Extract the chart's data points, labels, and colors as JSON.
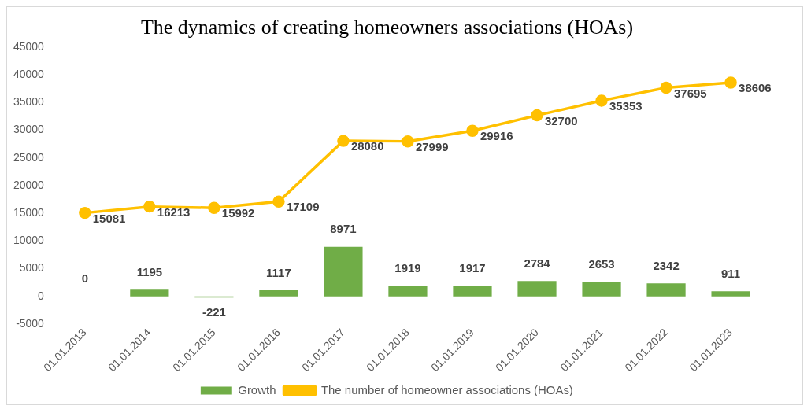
{
  "chart_data": {
    "type": "bar",
    "title": "The dynamics of creating homeowners associations (HOAs)",
    "categories": [
      "01.01.2013",
      "01.01.2014",
      "01.01.2015",
      "01.01.2016",
      "01.01.2017",
      "01.01.2018",
      "01.01.2019",
      "01.01.2020",
      "01.01.2021",
      "01.01.2022",
      "01.01.2023"
    ],
    "series": [
      {
        "name": "Growth",
        "color": "#70ad47",
        "values": [
          0,
          1195,
          -221,
          1117,
          8971,
          1919,
          1917,
          2784,
          2653,
          2342,
          911
        ]
      },
      {
        "name": "The number of homeowner associations (HOAs)",
        "type": "line",
        "color": "#ffc000",
        "marker": "circle",
        "values": [
          15081,
          16213,
          15992,
          17109,
          28080,
          27999,
          29916,
          32700,
          35353,
          37695,
          38606
        ]
      }
    ],
    "ylim": [
      -5000,
      45000
    ],
    "yticks": [
      -5000,
      0,
      5000,
      10000,
      15000,
      20000,
      25000,
      30000,
      35000,
      40000,
      45000
    ],
    "data_labels": true,
    "legend": "bottom"
  }
}
